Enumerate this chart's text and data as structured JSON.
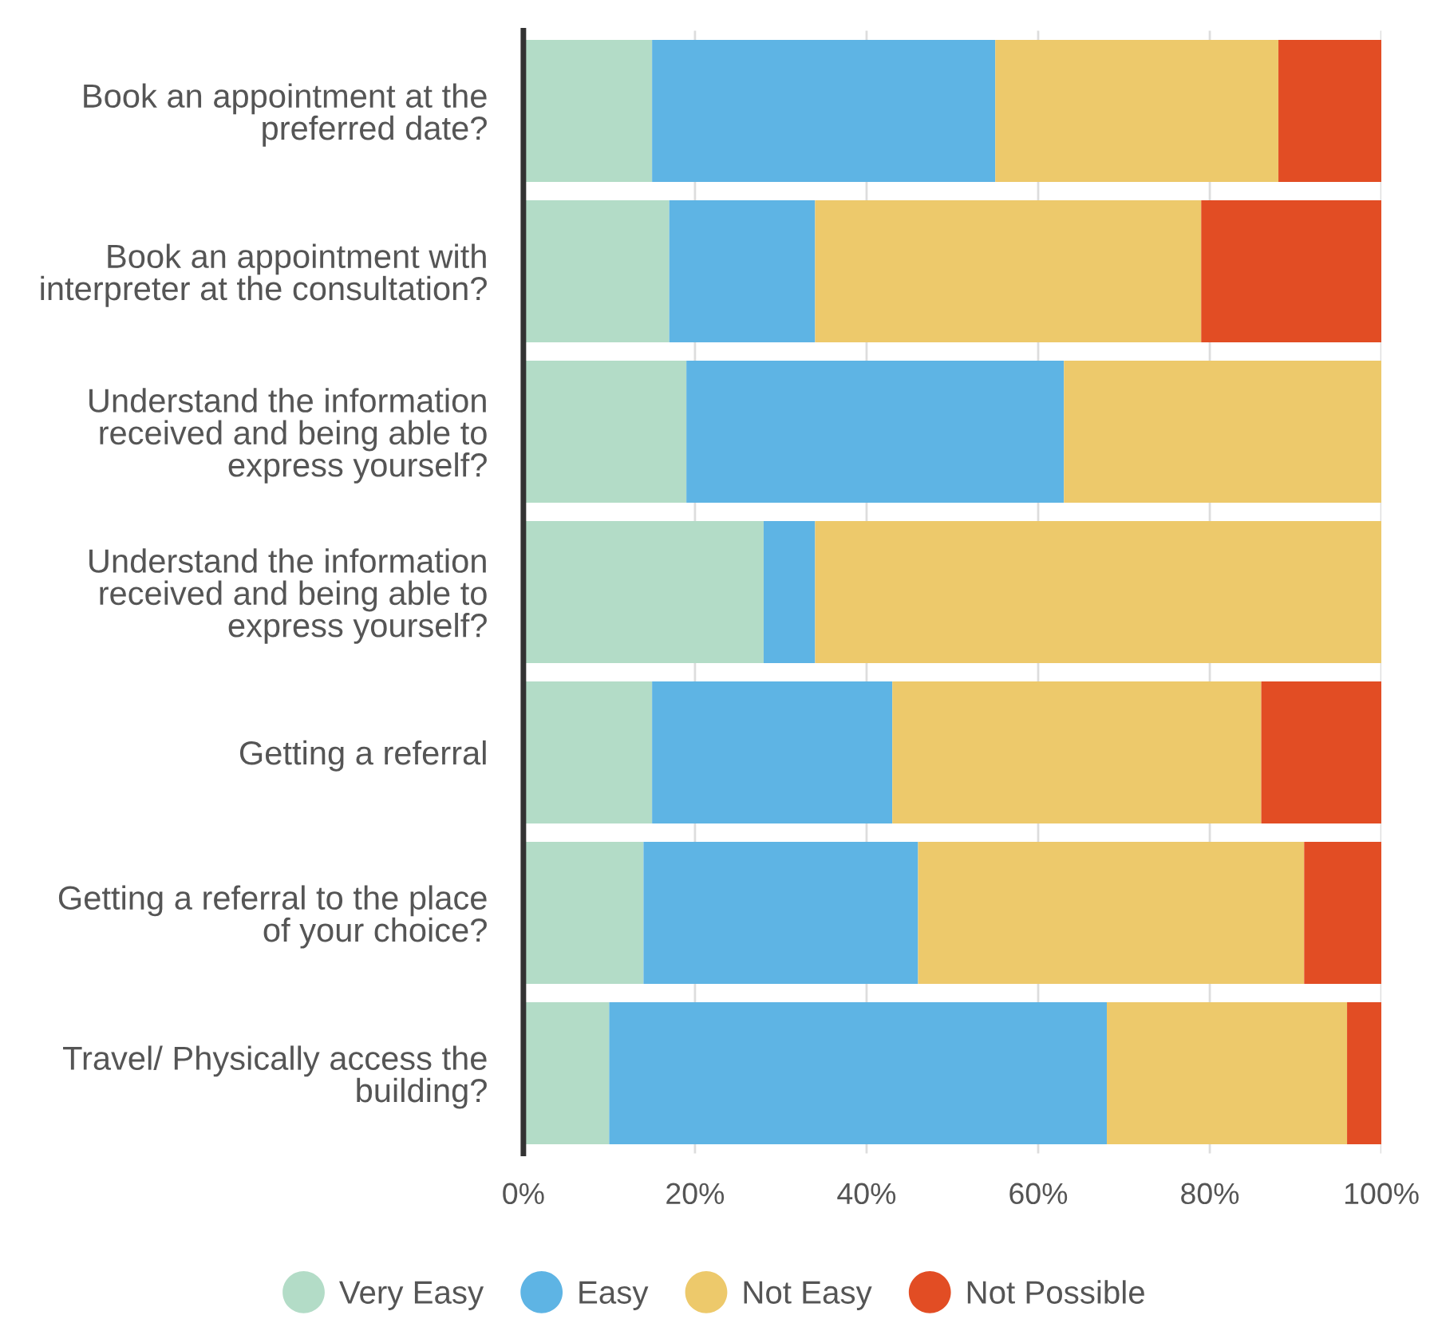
{
  "chart_data": {
    "type": "bar",
    "orientation": "horizontal",
    "stacked": true,
    "categories": [
      "Book an appointment at the\npreferred date?",
      "Book an appointment with\ninterpreter at the consultation?",
      "Understand the information\nreceived and being able to\nexpress yourself?",
      "Understand the information\nreceived and being able to\nexpress yourself?",
      "Getting a referral",
      "Getting a referral to the place\nof your choice?",
      "Travel/ Physically access the\nbuilding?"
    ],
    "series": [
      {
        "name": "Very Easy",
        "color": "#b3dcc7",
        "values": [
          15,
          17,
          19,
          28,
          15,
          14,
          10
        ]
      },
      {
        "name": "Easy",
        "color": "#5eb4e4",
        "values": [
          40,
          17,
          44,
          6,
          28,
          32,
          58
        ]
      },
      {
        "name": "Not Easy",
        "color": "#edc96b",
        "values": [
          33,
          45,
          37,
          66,
          43,
          45,
          28
        ]
      },
      {
        "name": "Not Possible",
        "color": "#e24d24",
        "values": [
          12,
          21,
          null,
          null,
          14,
          9,
          4
        ]
      }
    ],
    "xlim": [
      0,
      100
    ],
    "xticks": [
      {
        "value": 0,
        "label": "0%"
      },
      {
        "value": 20,
        "label": "20%"
      },
      {
        "value": 40,
        "label": "40%"
      },
      {
        "value": 60,
        "label": "60%"
      },
      {
        "value": 80,
        "label": "80%"
      },
      {
        "value": 100,
        "label": "100%"
      }
    ],
    "grid": "x",
    "legend": "bottom"
  }
}
